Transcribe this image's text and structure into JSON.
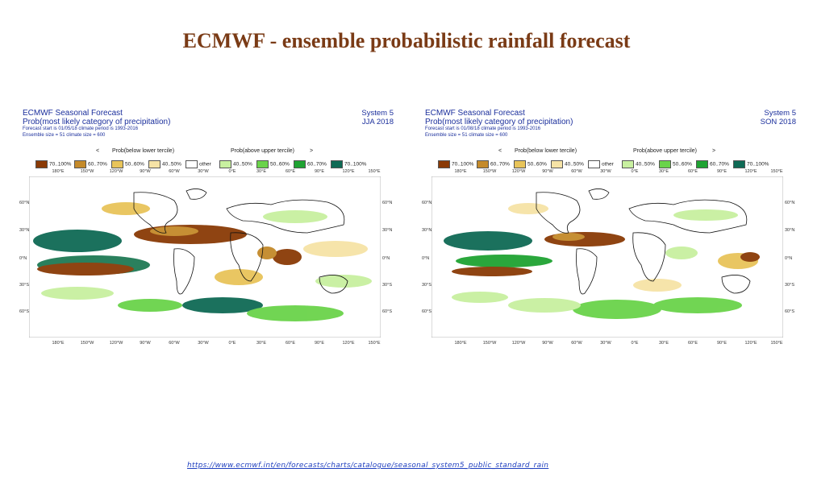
{
  "slide": {
    "title": "ECMWF - ensemble probabilistic rainfall forecast",
    "source_url": "https://www.ecmwf.int/en/forecasts/charts/catalogue/seasonal_system5_public_standard_rain"
  },
  "panels": [
    {
      "title": "ECMWF Seasonal Forecast",
      "subtitle": "Prob(most likely category of precipitation)",
      "forecast_line": "Forecast start is 01/05/18   climate period is 1993-2016",
      "ensemble_line": "Ensemble size = 51   climate size = 600",
      "system": "System 5",
      "period": "JJA 2018"
    },
    {
      "title": "ECMWF Seasonal Forecast",
      "subtitle": "Prob(most likely category of precipitation)",
      "forecast_line": "Forecast start is 01/08/18   climate period is 1993-2016",
      "ensemble_line": "Ensemble size = 51   climate size = 600",
      "system": "System 5",
      "period": "SON 2018"
    }
  ],
  "legend": {
    "below_label": "Prob(below lower tercile)",
    "above_label": "Prob(above upper tercile)",
    "arrow_left": "<",
    "arrow_right": ">",
    "items": [
      {
        "label": "70..100%",
        "color": "#8a3a06"
      },
      {
        "label": "60..70%",
        "color": "#c48a2a"
      },
      {
        "label": "50..60%",
        "color": "#e8c45a"
      },
      {
        "label": "40..50%",
        "color": "#f6e3a6"
      },
      {
        "label": "other",
        "color": "#ffffff"
      },
      {
        "label": "40..50%",
        "color": "#c8f0a0"
      },
      {
        "label": "50..60%",
        "color": "#6ad34a"
      },
      {
        "label": "60..70%",
        "color": "#1fa332"
      },
      {
        "label": "70..100%",
        "color": "#0f6a55"
      }
    ]
  },
  "axes": {
    "lon_labels": [
      "180°E",
      "150°W",
      "120°W",
      "90°W",
      "60°W",
      "30°W",
      "0°E",
      "30°E",
      "60°E",
      "90°E",
      "120°E",
      "150°E"
    ],
    "lat_labels": [
      "60°N",
      "30°N",
      "0°N",
      "30°S",
      "60°S"
    ]
  }
}
